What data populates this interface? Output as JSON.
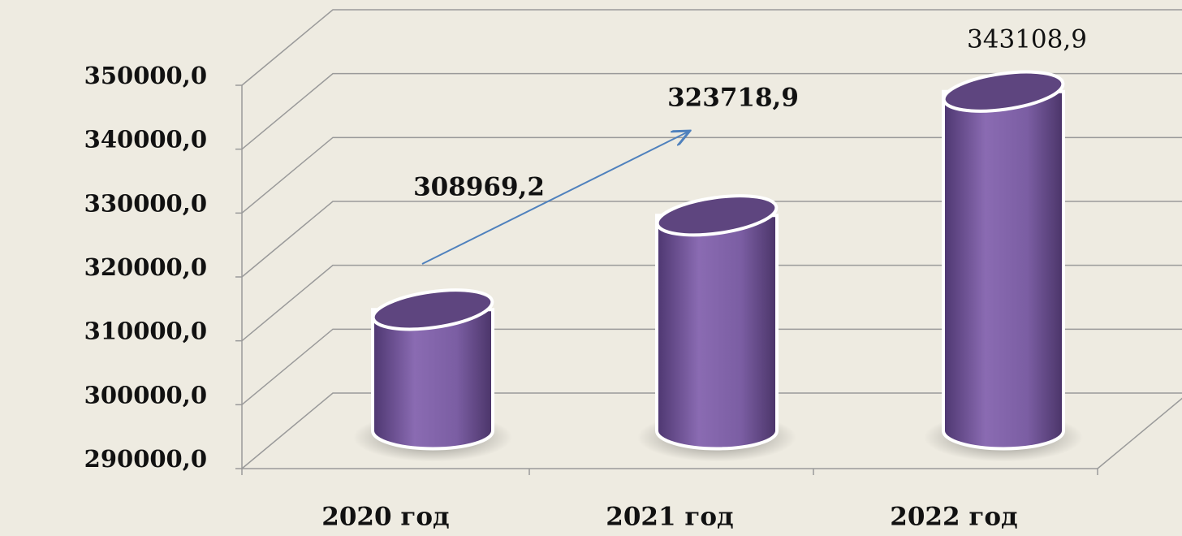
{
  "chart_data": {
    "type": "bar",
    "categories": [
      "2020 год",
      "2021 год",
      "2022 год"
    ],
    "values": [
      308969.2,
      323718.9,
      343108.9
    ],
    "value_labels": [
      "308969,2",
      "323718,9",
      "343108,9"
    ],
    "color": "#7b5ea3",
    "ylim": [
      290000,
      350000
    ],
    "yticks": [
      {
        "value": 290000,
        "label": "290000,0"
      },
      {
        "value": 300000,
        "label": "300000,0"
      },
      {
        "value": 310000,
        "label": "310000,0"
      },
      {
        "value": 320000,
        "label": "320000,0"
      },
      {
        "value": 330000,
        "label": "330000,0"
      },
      {
        "value": 340000,
        "label": "340000,0"
      },
      {
        "value": 350000,
        "label": "350000,0"
      }
    ],
    "grid": true
  }
}
